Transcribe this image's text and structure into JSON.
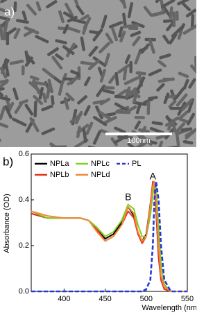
{
  "figure": {
    "panel_a": {
      "label": "a)",
      "scale_bar": "100nm"
    }
  },
  "chart_data": {
    "type": "line",
    "panel_label": "b)",
    "x_label": "Wavelength (nm)",
    "y_label": "Absorbance (OD)",
    "x": [
      360,
      380,
      400,
      420,
      430,
      440,
      450,
      460,
      470,
      478,
      485,
      490,
      495,
      500,
      505,
      508,
      510,
      512,
      515,
      518,
      522,
      530,
      550
    ],
    "series": [
      {
        "name": "NPLa",
        "color": "#000000",
        "dash": false,
        "values": [
          0.34,
          0.32,
          0.32,
          0.32,
          0.31,
          0.27,
          0.23,
          0.25,
          0.3,
          0.37,
          0.33,
          0.25,
          0.22,
          0.25,
          0.38,
          0.47,
          0.46,
          0.35,
          0.15,
          0.05,
          0.01,
          0,
          0
        ]
      },
      {
        "name": "NPLb",
        "color": "#e8321e",
        "dash": false,
        "values": [
          0.34,
          0.32,
          0.32,
          0.32,
          0.31,
          0.27,
          0.22,
          0.24,
          0.29,
          0.35,
          0.32,
          0.25,
          0.21,
          0.24,
          0.38,
          0.48,
          0.46,
          0.36,
          0.15,
          0.05,
          0.01,
          0,
          0
        ]
      },
      {
        "name": "NPLc",
        "color": "#7ed321",
        "dash": false,
        "values": [
          0.35,
          0.32,
          0.32,
          0.32,
          0.31,
          0.28,
          0.24,
          0.26,
          0.31,
          0.38,
          0.36,
          0.29,
          0.24,
          0.24,
          0.33,
          0.42,
          0.48,
          0.45,
          0.28,
          0.12,
          0.03,
          0,
          0
        ]
      },
      {
        "name": "NPLd",
        "color": "#f08a3c",
        "dash": false,
        "values": [
          0.35,
          0.33,
          0.32,
          0.32,
          0.31,
          0.26,
          0.22,
          0.24,
          0.29,
          0.37,
          0.34,
          0.26,
          0.22,
          0.24,
          0.37,
          0.46,
          0.48,
          0.4,
          0.2,
          0.07,
          0.02,
          0,
          0
        ]
      },
      {
        "name": "PL",
        "color": "#2438d6",
        "dash": true,
        "values": [
          0,
          0,
          0,
          0,
          0,
          0,
          0,
          0,
          0,
          0,
          0,
          0,
          0,
          0.01,
          0.05,
          0.2,
          0.4,
          0.48,
          0.4,
          0.2,
          0.05,
          0,
          0
        ]
      }
    ],
    "annotations": [
      {
        "text": "A",
        "x": 508,
        "y": 0.5
      },
      {
        "text": "B",
        "x": 478,
        "y": 0.41
      }
    ],
    "xlim": [
      360,
      550
    ],
    "xticks": [
      400,
      450,
      500,
      550
    ],
    "ylim": [
      0,
      0.6
    ],
    "yticks": [
      {
        "value": 0,
        "label": "0.0"
      },
      0.2,
      0.4,
      0.6
    ]
  }
}
